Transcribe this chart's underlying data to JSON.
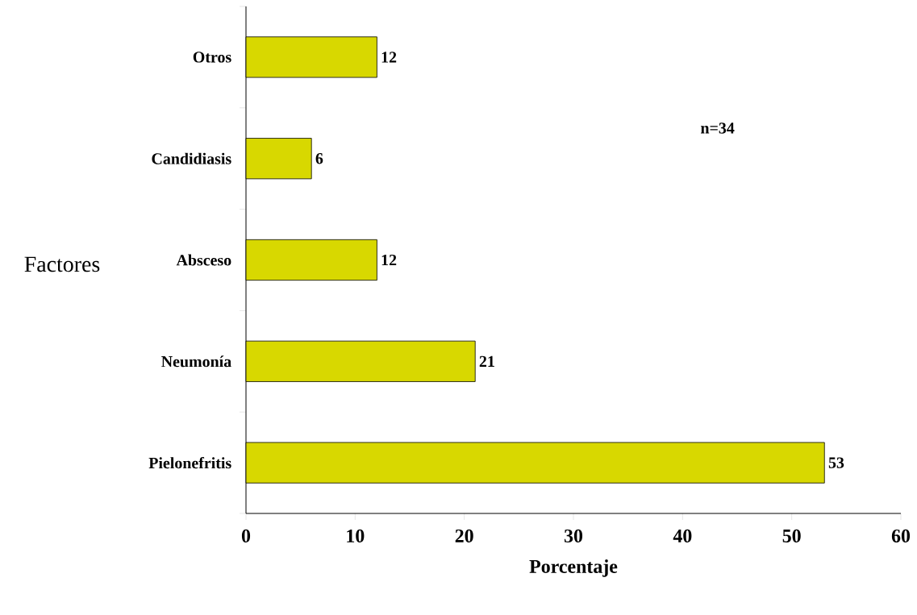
{
  "chart_data": {
    "type": "bar",
    "orientation": "horizontal",
    "xlabel": "Porcentaje",
    "ylabel": "Factores",
    "categories": [
      "Otros",
      "Candidiasis",
      "Absceso",
      "Neumonía",
      "Pielonefritis"
    ],
    "values": [
      12,
      6,
      12,
      21,
      53
    ],
    "color": "#d8d800",
    "xlim": [
      0,
      60
    ],
    "xticks": [
      0,
      10,
      20,
      30,
      40,
      50,
      60
    ],
    "data_labels": true,
    "grid": false,
    "annotations": [
      "n=34"
    ]
  }
}
